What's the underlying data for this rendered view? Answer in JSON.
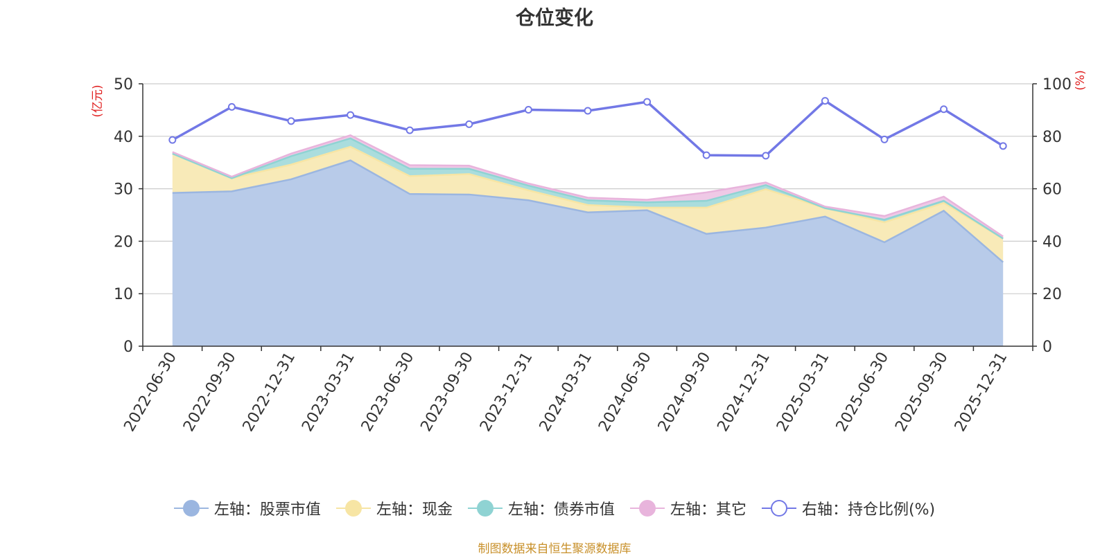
{
  "chart_data": {
    "type": "area",
    "title": "仓位变化",
    "categories": [
      "2022-06-30",
      "2022-09-30",
      "2022-12-31",
      "2023-03-31",
      "2023-06-30",
      "2023-09-30",
      "2023-12-31",
      "2024-03-31",
      "2024-06-30",
      "2024-09-30",
      "2024-12-31",
      "2025-03-31",
      "2025-06-30",
      "2025-09-30",
      "2025-12-31"
    ],
    "left_axis": {
      "label": "(亿元)",
      "ylim": [
        0,
        50
      ],
      "ticks": [
        0,
        10,
        20,
        30,
        40,
        50
      ]
    },
    "right_axis": {
      "label": "(%)",
      "ylim": [
        0,
        100
      ],
      "ticks": [
        0,
        20,
        40,
        60,
        80,
        100
      ]
    },
    "series": [
      {
        "name": "左轴：股票市值",
        "axis": "left",
        "stacked": true,
        "color": "#9bb6e0",
        "fill": "#b8cbe9",
        "values": [
          29.2,
          29.5,
          31.8,
          35.4,
          29.0,
          28.9,
          27.8,
          25.5,
          25.9,
          21.4,
          22.6,
          24.7,
          19.8,
          25.8,
          16.0
        ]
      },
      {
        "name": "左轴：现金",
        "axis": "left",
        "stacked": true,
        "color": "#f7e5a4",
        "fill": "#f8eab8",
        "values": [
          7.5,
          2.5,
          2.8,
          2.6,
          3.4,
          3.9,
          1.9,
          1.4,
          0.5,
          5.0,
          7.3,
          1.6,
          3.8,
          1.5,
          4.5
        ]
      },
      {
        "name": "左轴：债券市值",
        "axis": "left",
        "stacked": true,
        "color": "#8fd3d3",
        "fill": "#aadddd",
        "values": [
          0.0,
          0.0,
          1.6,
          1.6,
          1.4,
          1.0,
          0.9,
          0.9,
          1.0,
          1.3,
          0.8,
          0.0,
          0.5,
          0.4,
          0.0
        ]
      },
      {
        "name": "左轴：其它",
        "axis": "left",
        "stacked": true,
        "color": "#e8b4dc",
        "fill": "#efc9e6",
        "values": [
          0.3,
          0.3,
          0.5,
          0.6,
          0.7,
          0.6,
          0.4,
          0.5,
          0.5,
          1.6,
          0.5,
          0.3,
          0.7,
          0.8,
          0.4
        ]
      },
      {
        "name": "右轴：持仓比例(%)",
        "axis": "right",
        "stacked": false,
        "color": "#7278e6",
        "values": [
          78.6,
          91.2,
          85.8,
          88.1,
          82.3,
          84.6,
          90.1,
          89.7,
          93.1,
          72.8,
          72.6,
          93.5,
          78.8,
          90.3,
          76.3
        ]
      }
    ]
  },
  "source": "制图数据来自恒生聚源数据库"
}
